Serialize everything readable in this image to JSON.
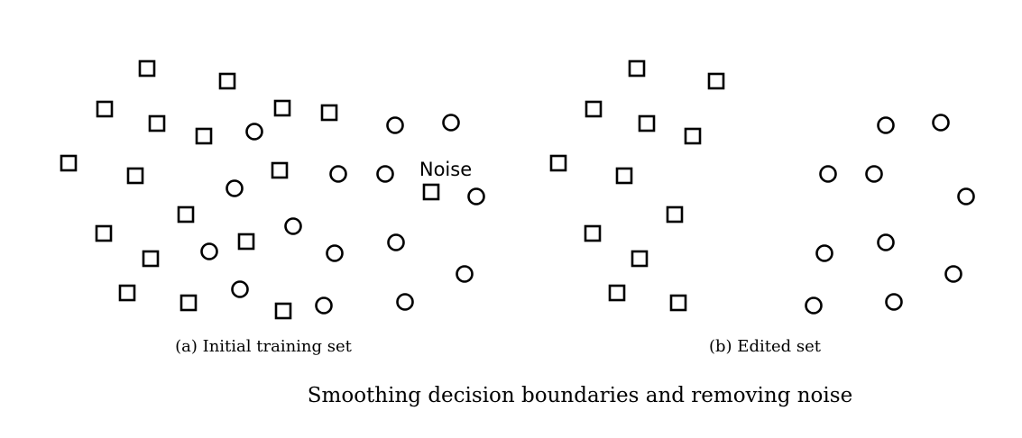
{
  "panels": [
    {
      "caption": "(a) Initial training set",
      "squares": [
        [
          163,
          76
        ],
        [
          252,
          90
        ],
        [
          116,
          121
        ],
        [
          313,
          120
        ],
        [
          174,
          137
        ],
        [
          365,
          125
        ],
        [
          226,
          151
        ],
        [
          76,
          181
        ],
        [
          150,
          195
        ],
        [
          310,
          189
        ],
        [
          206,
          238
        ],
        [
          115,
          259
        ],
        [
          273,
          268
        ],
        [
          167,
          287
        ],
        [
          141,
          325
        ],
        [
          209,
          336
        ],
        [
          314,
          345
        ],
        [
          478,
          213
        ]
      ],
      "circles": [
        [
          282,
          146
        ],
        [
          438,
          139
        ],
        [
          500,
          136
        ],
        [
          375,
          193
        ],
        [
          427,
          193
        ],
        [
          260,
          209
        ],
        [
          528,
          218
        ],
        [
          325,
          251
        ],
        [
          232,
          279
        ],
        [
          371,
          281
        ],
        [
          439,
          269
        ],
        [
          515,
          304
        ],
        [
          266,
          321
        ],
        [
          359,
          339
        ],
        [
          449,
          335
        ]
      ],
      "noise_label": "Noise"
    },
    {
      "caption": "(b) Edited set",
      "squares": [
        [
          706,
          76
        ],
        [
          794,
          90
        ],
        [
          658,
          121
        ],
        [
          717,
          137
        ],
        [
          768,
          151
        ],
        [
          619,
          181
        ],
        [
          692,
          195
        ],
        [
          748,
          238
        ],
        [
          657,
          259
        ],
        [
          709,
          287
        ],
        [
          684,
          325
        ],
        [
          752,
          336
        ]
      ],
      "circles": [
        [
          982,
          139
        ],
        [
          1043,
          136
        ],
        [
          918,
          193
        ],
        [
          969,
          193
        ],
        [
          1071,
          218
        ],
        [
          982,
          269
        ],
        [
          914,
          281
        ],
        [
          1057,
          304
        ],
        [
          991,
          335
        ],
        [
          902,
          339
        ]
      ]
    }
  ],
  "caption": "Smoothing decision boundaries and removing noise"
}
